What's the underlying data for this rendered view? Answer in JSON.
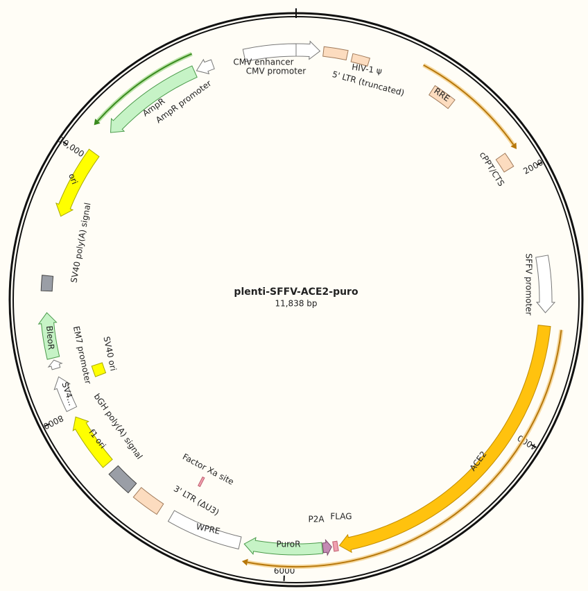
{
  "map": {
    "title": "plenti-SFFV-ACE2-puro",
    "length": {
      "value": 11838,
      "label": "11,838 bp"
    },
    "ticks": [
      2000,
      4000,
      6000,
      8000,
      {
        "value": 10000,
        "label": "10,000"
      }
    ]
  },
  "features": [
    {
      "label": "CMV enhancer"
    },
    {
      "label": "CMV promoter"
    },
    {
      "label": "5' LTR (truncated)"
    },
    {
      "label": "HIV-1 ψ"
    },
    {
      "label": "RRE"
    },
    {
      "label": "cPPT/CTS"
    },
    {
      "label": "SFFV promoter"
    },
    {
      "label": "ACE2"
    },
    {
      "label": "FLAG"
    },
    {
      "label": "P2A"
    },
    {
      "label": "PuroR"
    },
    {
      "label": "WPRE"
    },
    {
      "label": "Factor Xa site"
    },
    {
      "label": "3' LTR (ΔU3)"
    },
    {
      "label": "bGH poly(A) signal"
    },
    {
      "label": "f1 ori"
    },
    {
      "label": "SV4..."
    },
    {
      "label": "EM7 promoter"
    },
    {
      "label": "SV40 ori"
    },
    {
      "label": "BleoR"
    },
    {
      "label": "SV40 poly(A) signal"
    },
    {
      "label": "ori"
    },
    {
      "label": "AmpR"
    },
    {
      "label": "AmpR promoter"
    }
  ]
}
